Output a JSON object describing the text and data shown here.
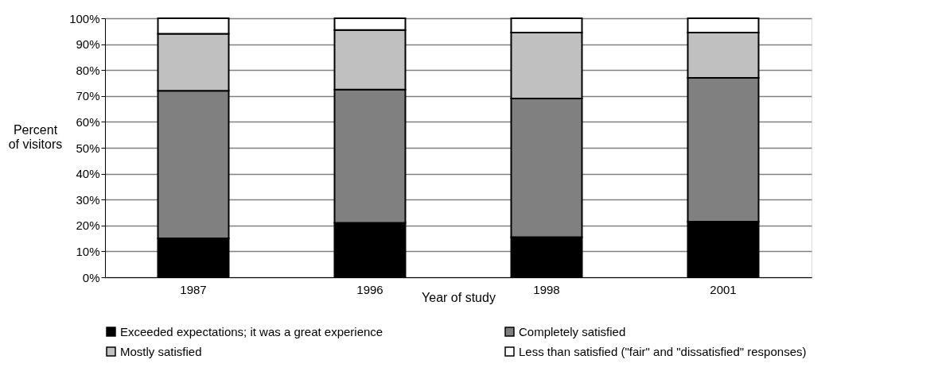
{
  "chart_data": {
    "type": "bar",
    "stacked": true,
    "xlabel": "Year of study",
    "ylabel": "Percent of visitors",
    "categories": [
      "1987",
      "1996",
      "1998",
      "2001"
    ],
    "series": [
      {
        "name": "Exceeded expectations; it was a great experience",
        "color": "#000000",
        "values": [
          15,
          21,
          15.5,
          21.5
        ]
      },
      {
        "name": "Completely satisfied",
        "color": "#808080",
        "values": [
          57,
          51.5,
          53.5,
          55.5
        ]
      },
      {
        "name": "Mostly satisfied",
        "color": "#c0c0c0",
        "values": [
          22,
          23,
          25.5,
          17.5
        ]
      },
      {
        "name": "Less than satisfied (\"fair\" and \"dissatisfied\" responses)",
        "color": "#ffffff",
        "values": [
          6,
          4.5,
          5.5,
          5.5
        ]
      }
    ],
    "ylim": [
      0,
      100
    ],
    "yticks": [
      {
        "value": 0,
        "label": "0%"
      },
      {
        "value": 10,
        "label": "10%"
      },
      {
        "value": 20,
        "label": "20%"
      },
      {
        "value": 30,
        "label": "30%"
      },
      {
        "value": 40,
        "label": "40%"
      },
      {
        "value": 50,
        "label": "50%"
      },
      {
        "value": 60,
        "label": "60%"
      },
      {
        "value": 70,
        "label": "70%"
      },
      {
        "value": 80,
        "label": "80%"
      },
      {
        "value": 90,
        "label": "90%"
      },
      {
        "value": 100,
        "label": "100%"
      }
    ],
    "grid": "y",
    "legend": "bottom"
  }
}
